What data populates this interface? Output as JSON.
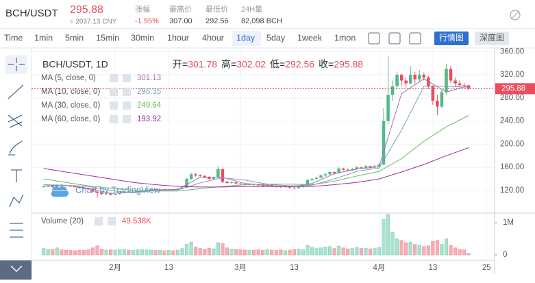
{
  "header": {
    "pair": "BCH/USDT",
    "price": "295.88",
    "cny": "≈ 2037.13 CNY",
    "stats": [
      {
        "label": "涨幅",
        "value": "-1.95%"
      },
      {
        "label": "最高价",
        "value": "307.00"
      },
      {
        "label": "最低价",
        "value": "292.56"
      },
      {
        "label": "24H量",
        "value": "82,098 BCH"
      }
    ]
  },
  "toolbar": {
    "intervals": [
      "Time",
      "1min",
      "5min",
      "15min",
      "30min",
      "1hour",
      "4hour",
      "1day",
      "5day",
      "1week",
      "1mon"
    ],
    "active": 7,
    "buttons": [
      "行情图",
      "深度图"
    ]
  },
  "chart_data": {
    "type": "candlestick",
    "title": "BCH/USDT, 1D",
    "ohlc_labels": [
      "开=",
      "高=",
      "低=",
      "收="
    ],
    "watermark": "Chart by TradingView",
    "up_color": "#53b987",
    "down_color": "#eb4d5c",
    "candles": [
      [
        126,
        128,
        125,
        127
      ],
      [
        127,
        129,
        126,
        128
      ],
      [
        128,
        129,
        125,
        126
      ],
      [
        126,
        131,
        125,
        130
      ],
      [
        130,
        131,
        128,
        129
      ],
      [
        129,
        130,
        127,
        128
      ],
      [
        128,
        129,
        126,
        127
      ],
      [
        127,
        128,
        125,
        126
      ],
      [
        126,
        127,
        123,
        125
      ],
      [
        125,
        126,
        122,
        124
      ],
      [
        124,
        125,
        121,
        122
      ],
      [
        122,
        123,
        116,
        118
      ],
      [
        118,
        119,
        108,
        116
      ],
      [
        116,
        117,
        112,
        114
      ],
      [
        114,
        116,
        113,
        115
      ],
      [
        115,
        116,
        111,
        113
      ],
      [
        113,
        115,
        112,
        114
      ],
      [
        114,
        117,
        113,
        116
      ],
      [
        116,
        119,
        115,
        118
      ],
      [
        118,
        119,
        116,
        117
      ],
      [
        117,
        119,
        116,
        118
      ],
      [
        118,
        120,
        117,
        119
      ],
      [
        119,
        121,
        118,
        120
      ],
      [
        120,
        122,
        119,
        121
      ],
      [
        121,
        123,
        120,
        122
      ],
      [
        122,
        123,
        120,
        121
      ],
      [
        121,
        123,
        120,
        122
      ],
      [
        122,
        123,
        120,
        121
      ],
      [
        121,
        123,
        120,
        122
      ],
      [
        122,
        123,
        120,
        121
      ],
      [
        121,
        124,
        120,
        123
      ],
      [
        123,
        127,
        122,
        125
      ],
      [
        125,
        142,
        124,
        140
      ],
      [
        140,
        150,
        138,
        148
      ],
      [
        148,
        150,
        144,
        146
      ],
      [
        146,
        148,
        143,
        145
      ],
      [
        145,
        147,
        141,
        143
      ],
      [
        143,
        145,
        138,
        140
      ],
      [
        140,
        144,
        139,
        142
      ],
      [
        142,
        162,
        141,
        157
      ],
      [
        157,
        158,
        133,
        135
      ],
      [
        135,
        137,
        131,
        133
      ],
      [
        133,
        136,
        132,
        134
      ],
      [
        134,
        135,
        130,
        132
      ],
      [
        132,
        133,
        129,
        131
      ],
      [
        131,
        132,
        128,
        130
      ],
      [
        130,
        132,
        129,
        131
      ],
      [
        131,
        132,
        128,
        130
      ],
      [
        130,
        131,
        127,
        129
      ],
      [
        129,
        130,
        126,
        128
      ],
      [
        128,
        131,
        127,
        130
      ],
      [
        130,
        131,
        127,
        128
      ],
      [
        128,
        129,
        125,
        127
      ],
      [
        127,
        128,
        124,
        126
      ],
      [
        126,
        128,
        125,
        127
      ],
      [
        127,
        128,
        123,
        125
      ],
      [
        125,
        126,
        122,
        124
      ],
      [
        124,
        127,
        123,
        126
      ],
      [
        126,
        129,
        125,
        128
      ],
      [
        128,
        140,
        127,
        138
      ],
      [
        138,
        142,
        136,
        140
      ],
      [
        140,
        144,
        139,
        142
      ],
      [
        142,
        148,
        141,
        146
      ],
      [
        146,
        150,
        144,
        148
      ],
      [
        148,
        154,
        147,
        152
      ],
      [
        152,
        153,
        148,
        150
      ],
      [
        150,
        160,
        149,
        158
      ],
      [
        158,
        159,
        154,
        156
      ],
      [
        156,
        158,
        153,
        155
      ],
      [
        155,
        159,
        154,
        157
      ],
      [
        157,
        162,
        156,
        160
      ],
      [
        160,
        161,
        157,
        159
      ],
      [
        159,
        164,
        158,
        162
      ],
      [
        162,
        163,
        158,
        160
      ],
      [
        160,
        164,
        159,
        162
      ],
      [
        162,
        167,
        160,
        165
      ],
      [
        165,
        262,
        163,
        240
      ],
      [
        240,
        352,
        235,
        285
      ],
      [
        285,
        310,
        275,
        300
      ],
      [
        300,
        325,
        295,
        320
      ],
      [
        320,
        322,
        300,
        310
      ],
      [
        310,
        315,
        298,
        305
      ],
      [
        305,
        335,
        303,
        320
      ],
      [
        320,
        325,
        305,
        312
      ],
      [
        312,
        328,
        308,
        320
      ],
      [
        320,
        324,
        310,
        315
      ],
      [
        315,
        318,
        295,
        300
      ],
      [
        300,
        302,
        268,
        275
      ],
      [
        275,
        285,
        250,
        265
      ],
      [
        265,
        295,
        262,
        290
      ],
      [
        290,
        338,
        285,
        330
      ],
      [
        330,
        335,
        305,
        310
      ],
      [
        310,
        315,
        300,
        305
      ],
      [
        305,
        310,
        298,
        302
      ],
      [
        302,
        306,
        296,
        301.78
      ],
      [
        301.78,
        302.02,
        292.56,
        295.88
      ]
    ],
    "volume": {
      "name": "Volume (20)",
      "value_label": "49.538K",
      "values": [
        200000,
        180000,
        170000,
        220000,
        160000,
        150000,
        140000,
        130000,
        150000,
        140000,
        160000,
        220000,
        280000,
        180000,
        150000,
        160000,
        150000,
        170000,
        180000,
        150000,
        140000,
        160000,
        170000,
        160000,
        150000,
        140000,
        150000,
        130000,
        140000,
        130000,
        150000,
        200000,
        330000,
        400000,
        250000,
        200000,
        180000,
        210000,
        190000,
        380000,
        350000,
        220000,
        180000,
        170000,
        160000,
        150000,
        140000,
        150000,
        160000,
        140000,
        170000,
        150000,
        140000,
        160000,
        130000,
        150000,
        170000,
        180000,
        160000,
        300000,
        240000,
        200000,
        220000,
        250000,
        260000,
        200000,
        270000,
        220000,
        190000,
        200000,
        230000,
        200000,
        210000,
        190000,
        200000,
        230000,
        1100000,
        1250000,
        700000,
        500000,
        450000,
        380000,
        400000,
        330000,
        300000,
        260000,
        280000,
        420000,
        450000,
        330000,
        500000,
        300000,
        220000,
        180000,
        160000,
        49538
      ],
      "ylim": [
        -170000,
        1277000
      ],
      "yticks": [
        0,
        {
          "value": 1000000,
          "label": "1M"
        }
      ]
    },
    "ma": [
      {
        "name": "MA (5, close, 0)",
        "color": "#a36fb5",
        "x": [
          0,
          5,
          10,
          15,
          20,
          25,
          30,
          35,
          40,
          45,
          50,
          55,
          60,
          65,
          70,
          75,
          80,
          85,
          90,
          95
        ],
        "values": [
          128,
          129,
          124,
          115,
          117,
          121,
          122,
          143,
          143,
          132,
          129,
          126,
          132,
          149,
          157,
          161,
          287,
          313,
          290,
          301.13
        ]
      },
      {
        "name": "MA (10, close, 0)",
        "color": "#7f9fc9",
        "x": [
          0,
          5,
          10,
          15,
          20,
          25,
          30,
          35,
          40,
          45,
          50,
          55,
          60,
          65,
          70,
          75,
          80,
          85,
          90,
          95
        ],
        "values": [
          130,
          129,
          127,
          120,
          116,
          120,
          121,
          133,
          142,
          138,
          131,
          128,
          129,
          140,
          153,
          159,
          224,
          300,
          300,
          298.35
        ]
      },
      {
        "name": "MA (30, close, 0)",
        "color": "#6dbb5a",
        "x": [
          0,
          5,
          10,
          15,
          20,
          25,
          30,
          35,
          40,
          45,
          50,
          55,
          60,
          65,
          70,
          75,
          80,
          85,
          90,
          95
        ],
        "values": [
          140,
          134,
          128,
          124,
          120,
          119,
          119,
          123,
          127,
          130,
          131,
          131,
          130,
          136,
          145,
          153,
          175,
          205,
          230,
          249.64
        ]
      },
      {
        "name": "MA (60, close, 0)",
        "color": "#a22ba0",
        "x": [
          0,
          5,
          10,
          15,
          20,
          25,
          30,
          35,
          40,
          45,
          50,
          55,
          60,
          65,
          70,
          75,
          80,
          85,
          90,
          95
        ],
        "values": [
          158,
          152,
          146,
          140,
          134,
          130,
          127,
          126,
          126,
          127,
          127,
          127,
          127,
          130,
          134,
          140,
          152,
          165,
          180,
          193.92
        ]
      }
    ],
    "xlim": [
      -2.7,
      100.8
    ],
    "xticks": [
      {
        "value": 16,
        "label": "2月"
      },
      {
        "value": 28,
        "label": "13"
      },
      {
        "value": 44,
        "label": "3月"
      },
      {
        "value": 56,
        "label": "13"
      },
      {
        "value": 75,
        "label": "4月"
      },
      {
        "value": 87,
        "label": "13"
      },
      {
        "value": 99,
        "label": "25"
      }
    ],
    "ylim": [
      82.1,
      366.2
    ],
    "yticks": [
      {
        "value": 120,
        "label": "120.00"
      },
      {
        "value": 160,
        "label": "160.00"
      },
      {
        "value": 200,
        "label": "200.00"
      },
      {
        "value": 240,
        "label": "240.00"
      },
      {
        "value": 280,
        "label": "280.00"
      },
      {
        "value": 320,
        "label": "320.00"
      },
      {
        "value": 360,
        "label": "360.00"
      }
    ],
    "grid": true
  }
}
